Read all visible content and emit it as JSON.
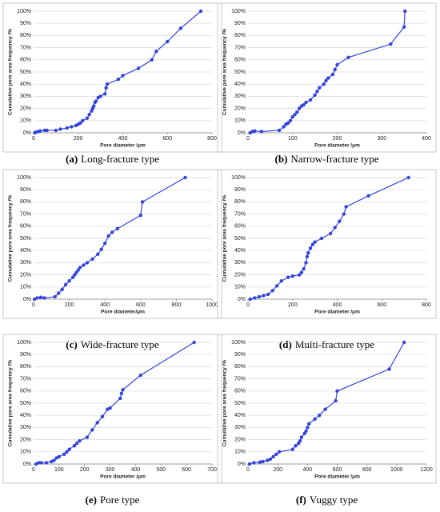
{
  "chart_data": [
    {
      "type": "line",
      "label": "(a)",
      "caption": "Long-fracture type",
      "xlabel": "Pore diameter /μm",
      "ylabel": "Cumulative pore area frequency /%",
      "color": "#3344dd",
      "x": [
        5,
        10,
        20,
        30,
        50,
        60,
        100,
        120,
        150,
        170,
        190,
        200,
        210,
        220,
        240,
        250,
        260,
        265,
        270,
        275,
        280,
        290,
        300,
        320,
        325,
        330,
        380,
        400,
        470,
        530,
        550,
        600,
        660,
        750
      ],
      "values": [
        0,
        0.5,
        1,
        1.5,
        2,
        2,
        2,
        3,
        4,
        5,
        6,
        7,
        8,
        10,
        12,
        15,
        18,
        20,
        22,
        25,
        26,
        29,
        30,
        32,
        37,
        40,
        44,
        47,
        53,
        60,
        67,
        75,
        86,
        100
      ],
      "xlim": [
        0,
        800
      ],
      "xticks": [
        0,
        200,
        400,
        600,
        800
      ],
      "ylim": [
        0,
        100
      ],
      "yticks": [
        {
          "value": 0,
          "label": "0%"
        },
        {
          "value": 10,
          "label": "10%"
        },
        {
          "value": 20,
          "label": "20%"
        },
        {
          "value": 30,
          "label": "30%"
        },
        {
          "value": 40,
          "label": "40%"
        },
        {
          "value": 50,
          "label": "50%"
        },
        {
          "value": 60,
          "label": "60%"
        },
        {
          "value": 70,
          "label": "70%"
        },
        {
          "value": 80,
          "label": "80%"
        },
        {
          "value": 90,
          "label": "90%"
        },
        {
          "value": 100,
          "label": "100%"
        }
      ],
      "grid": true
    },
    {
      "type": "line",
      "label": "(b)",
      "caption": "Narrow-fracture type",
      "xlabel": "Pore diameter /μm",
      "ylabel": "Cumulative pore area frequency /%",
      "color": "#3344dd",
      "x": [
        5,
        10,
        15,
        30,
        70,
        80,
        85,
        90,
        95,
        100,
        105,
        110,
        115,
        120,
        125,
        130,
        140,
        150,
        155,
        160,
        170,
        175,
        180,
        190,
        195,
        200,
        225,
        320,
        350,
        352
      ],
      "values": [
        0,
        1,
        1.5,
        1,
        2,
        5,
        7,
        8,
        10,
        13,
        15,
        17,
        20,
        22,
        23,
        25,
        27,
        31,
        34,
        37,
        40,
        43,
        45,
        48,
        52,
        56,
        62,
        73,
        87,
        100
      ],
      "xlim": [
        0,
        400
      ],
      "xticks": [
        0,
        100,
        200,
        300,
        400
      ],
      "ylim": [
        0,
        100
      ],
      "yticks": [
        {
          "value": 0,
          "label": "0%"
        },
        {
          "value": 10,
          "label": "10%"
        },
        {
          "value": 20,
          "label": "20%"
        },
        {
          "value": 30,
          "label": "30%"
        },
        {
          "value": 40,
          "label": "40%"
        },
        {
          "value": 50,
          "label": "50%"
        },
        {
          "value": 60,
          "label": "60%"
        },
        {
          "value": 70,
          "label": "70%"
        },
        {
          "value": 80,
          "label": "80%"
        },
        {
          "value": 90,
          "label": "90%"
        },
        {
          "value": 100,
          "label": "100%"
        }
      ],
      "grid": true
    },
    {
      "type": "line",
      "label": "(c)",
      "caption": "Wide-fracture type",
      "xlabel": "Pore diameter/μm",
      "ylabel": "Cumulative pore area frequency /%",
      "color": "#3344dd",
      "x": [
        5,
        20,
        40,
        60,
        120,
        140,
        160,
        180,
        200,
        220,
        230,
        240,
        250,
        260,
        280,
        300,
        330,
        360,
        380,
        400,
        420,
        440,
        470,
        600,
        610,
        850
      ],
      "values": [
        0,
        1,
        1.5,
        1,
        2,
        5,
        8,
        12,
        15,
        18,
        20,
        22,
        24,
        26,
        28,
        30,
        33,
        37,
        41,
        46,
        52,
        55,
        58,
        69,
        80,
        100
      ],
      "xlim": [
        0,
        1000
      ],
      "xticks": [
        0,
        200,
        400,
        600,
        800,
        1000
      ],
      "ylim": [
        0,
        100
      ],
      "yticks": [
        {
          "value": 0,
          "label": "0%"
        },
        {
          "value": 10,
          "label": "10%"
        },
        {
          "value": 20,
          "label": "20%"
        },
        {
          "value": 30,
          "label": "30%"
        },
        {
          "value": 40,
          "label": "40%"
        },
        {
          "value": 50,
          "label": "50%"
        },
        {
          "value": 60,
          "label": "60%"
        },
        {
          "value": 70,
          "label": "70%"
        },
        {
          "value": 80,
          "label": "80%"
        },
        {
          "value": 90,
          "label": "90%"
        },
        {
          "value": 100,
          "label": "100%"
        }
      ],
      "grid": true
    },
    {
      "type": "line",
      "label": "(d)",
      "caption": "Multi-fracture type",
      "xlabel": "Pore diameter /μm",
      "ylabel": "Cumulative pore area frequency /%",
      "color": "#3344dd",
      "x": [
        10,
        30,
        50,
        70,
        90,
        110,
        130,
        150,
        180,
        200,
        230,
        240,
        250,
        260,
        265,
        270,
        280,
        290,
        300,
        330,
        370,
        390,
        410,
        430,
        440,
        540,
        720
      ],
      "values": [
        0,
        1,
        2,
        3,
        4,
        7,
        11,
        15,
        18,
        19,
        20,
        22,
        25,
        30,
        35,
        38,
        42,
        45,
        47,
        50,
        54,
        59,
        64,
        70,
        76,
        85,
        100
      ],
      "xlim": [
        0,
        800
      ],
      "xticks": [
        0,
        200,
        400,
        600,
        800
      ],
      "ylim": [
        0,
        100
      ],
      "yticks": [
        {
          "value": 0,
          "label": "0%"
        },
        {
          "value": 10,
          "label": "10%"
        },
        {
          "value": 20,
          "label": "20%"
        },
        {
          "value": 30,
          "label": "30%"
        },
        {
          "value": 40,
          "label": "40%"
        },
        {
          "value": 50,
          "label": "50%"
        },
        {
          "value": 60,
          "label": "60%"
        },
        {
          "value": 70,
          "label": "70%"
        },
        {
          "value": 80,
          "label": "80%"
        },
        {
          "value": 90,
          "label": "90%"
        },
        {
          "value": 100,
          "label": "100%"
        }
      ],
      "grid": true
    },
    {
      "type": "line",
      "label": "(e)",
      "caption": "Pore type",
      "xlabel": "Pore diameter /μm",
      "ylabel": "Cumulative pore area frequency /%",
      "color": "#3344dd",
      "x": [
        10,
        20,
        30,
        50,
        70,
        80,
        90,
        100,
        120,
        130,
        140,
        160,
        170,
        180,
        210,
        230,
        250,
        270,
        290,
        300,
        340,
        345,
        350,
        420,
        630
      ],
      "values": [
        0,
        1,
        1,
        1,
        2,
        3,
        5,
        6,
        8,
        10,
        12,
        15,
        17,
        19,
        22,
        28,
        34,
        39,
        45,
        46,
        54,
        58,
        61,
        73,
        100
      ],
      "xlim": [
        0,
        700
      ],
      "xticks": [
        0,
        100,
        200,
        300,
        400,
        500,
        600,
        700
      ],
      "ylim": [
        0,
        100
      ],
      "yticks": [
        {
          "value": 0,
          "label": "0%"
        },
        {
          "value": 10,
          "label": "10%"
        },
        {
          "value": 20,
          "label": "20%"
        },
        {
          "value": 30,
          "label": "30%"
        },
        {
          "value": 40,
          "label": "40%"
        },
        {
          "value": 50,
          "label": "50%"
        },
        {
          "value": 60,
          "label": "60%"
        },
        {
          "value": 70,
          "label": "70%"
        },
        {
          "value": 80,
          "label": "80%"
        },
        {
          "value": 90,
          "label": "90%"
        },
        {
          "value": 100,
          "label": "100%"
        }
      ],
      "grid": true
    },
    {
      "type": "line",
      "label": "(f)",
      "caption": "Vuggy type",
      "xlabel": "Pore diameter /μm",
      "ylabel": "Cumulative pore area frequency /%",
      "color": "#3344dd",
      "x": [
        10,
        40,
        80,
        100,
        130,
        150,
        170,
        190,
        210,
        300,
        320,
        340,
        350,
        360,
        380,
        390,
        400,
        410,
        450,
        480,
        520,
        590,
        600,
        950,
        1050
      ],
      "values": [
        0,
        1,
        1.5,
        2,
        3,
        4,
        6,
        8,
        10,
        12,
        15,
        17,
        19,
        22,
        25,
        27,
        30,
        33,
        37,
        40,
        45,
        52,
        60,
        78,
        100
      ],
      "xlim": [
        0,
        1200
      ],
      "xticks": [
        0,
        200,
        400,
        600,
        800,
        1000,
        1200
      ],
      "ylim": [
        0,
        100
      ],
      "yticks": [
        {
          "value": 0,
          "label": "0%"
        },
        {
          "value": 10,
          "label": "10%"
        },
        {
          "value": 20,
          "label": "20%"
        },
        {
          "value": 30,
          "label": "30%"
        },
        {
          "value": 40,
          "label": "40%"
        },
        {
          "value": 50,
          "label": "50%"
        },
        {
          "value": 60,
          "label": "60%"
        },
        {
          "value": 70,
          "label": "70%"
        },
        {
          "value": 80,
          "label": "80%"
        },
        {
          "value": 90,
          "label": "90%"
        },
        {
          "value": 100,
          "label": "100%"
        }
      ],
      "grid": true
    }
  ]
}
